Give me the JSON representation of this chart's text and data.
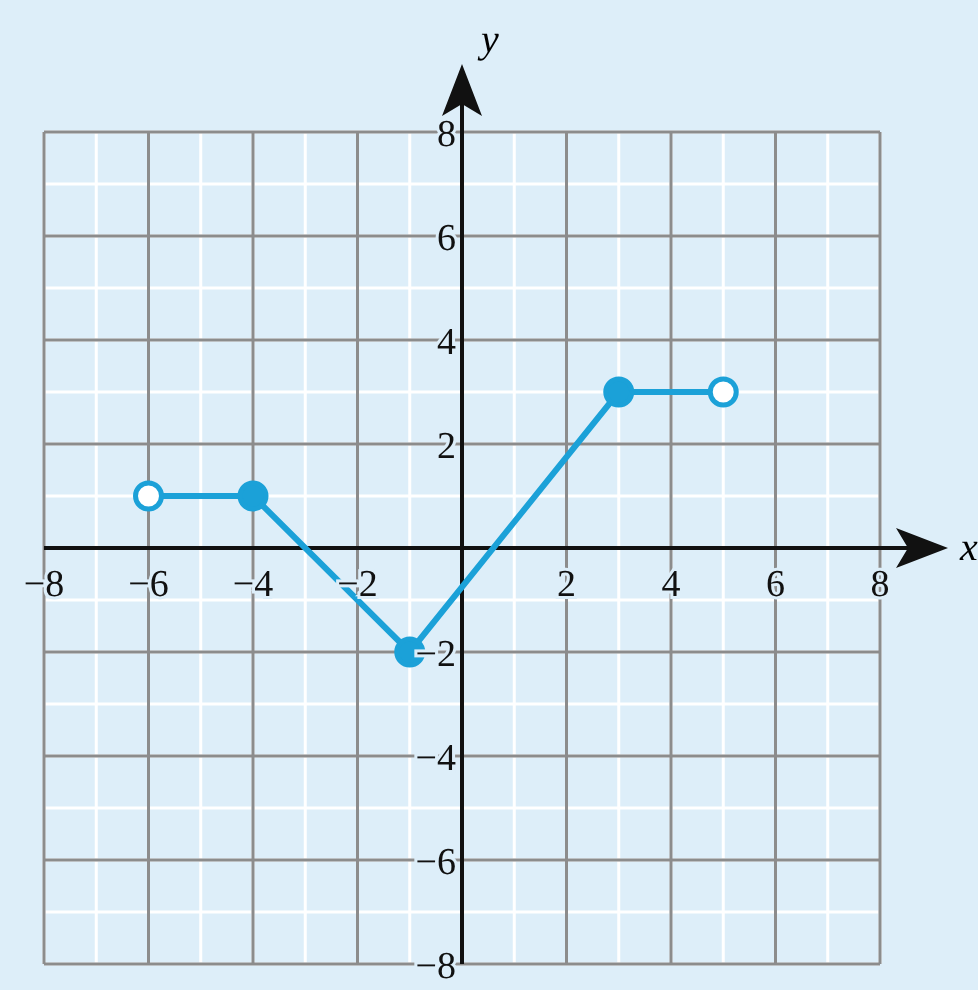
{
  "chart_data": {
    "type": "line",
    "xlabel": "x",
    "ylabel": "y",
    "xlim": [
      -8,
      8
    ],
    "ylim": [
      -8,
      8
    ],
    "xticks": [
      {
        "value": -8,
        "label": "−8"
      },
      {
        "value": -6,
        "label": "−6"
      },
      {
        "value": -4,
        "label": "−4"
      },
      {
        "value": -2,
        "label": "−2"
      },
      2,
      4,
      6,
      8
    ],
    "yticks": [
      {
        "value": -8,
        "label": "−8"
      },
      {
        "value": -6,
        "label": "−6"
      },
      {
        "value": -4,
        "label": "−4"
      },
      {
        "value": -2,
        "label": "−2"
      },
      2,
      4,
      6,
      8
    ],
    "grid": true,
    "series": [
      {
        "color": "#1ba1d8",
        "x": [
          -6,
          -4,
          -1,
          3,
          5
        ],
        "values": [
          1,
          1,
          -2,
          3,
          3
        ],
        "marker": "none"
      },
      {
        "type": "scatter",
        "color": "#1ba1d8",
        "x": [
          -4,
          -1,
          3
        ],
        "values": [
          1,
          -2,
          3
        ],
        "marker": "circle"
      },
      {
        "type": "scatter",
        "color": "#ffffff",
        "x": [
          -6,
          5
        ],
        "values": [
          1,
          3
        ],
        "marker": "circle"
      }
    ]
  }
}
